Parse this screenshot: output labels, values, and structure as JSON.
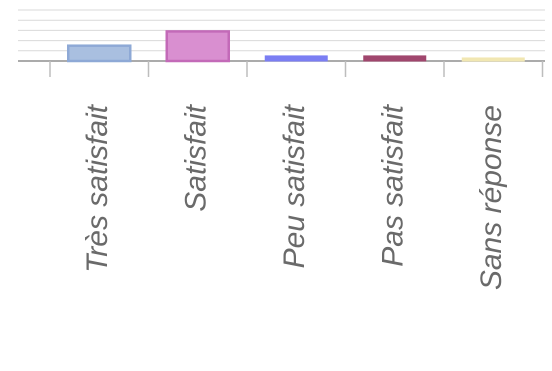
{
  "chart_data": {
    "type": "bar",
    "categories": [
      "Très satisfait",
      "Satisfait",
      "Peu satisfait",
      "Pas satisfait",
      "Sans réponse"
    ],
    "values": [
      15,
      29,
      5,
      5,
      3
    ],
    "ylim": [
      0,
      50
    ],
    "grid": true,
    "colors": [
      "#a9bfe0",
      "#d98fd0",
      "#7b7ef3",
      "#a0466d",
      "#f1e7b2"
    ]
  }
}
